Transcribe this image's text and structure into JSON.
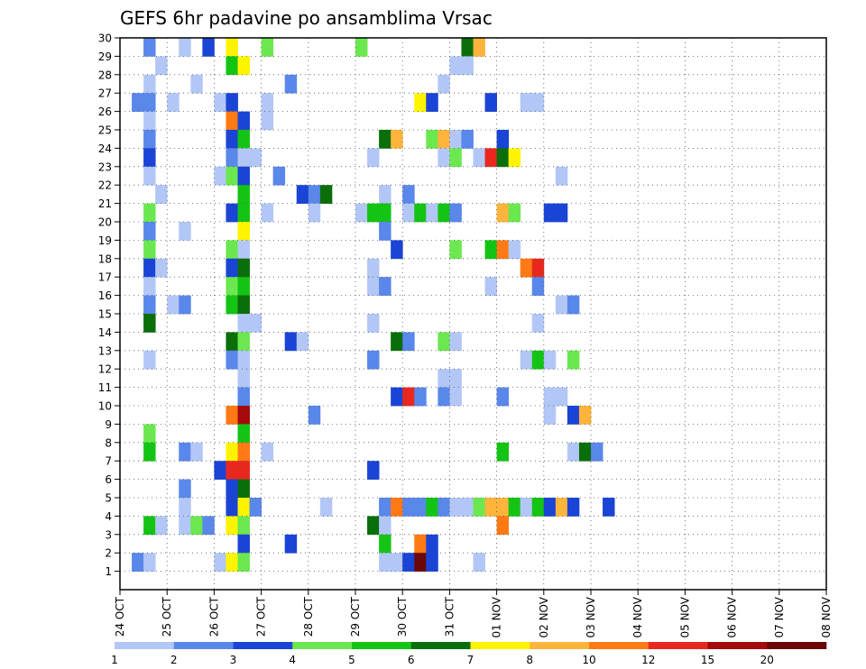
{
  "chart_data": {
    "type": "heatmap",
    "title": "GEFS 6hr padavine po ansamblima Vrsac",
    "x_ticks": [
      "24 OCT",
      "25 OCT",
      "26 OCT",
      "27 OCT",
      "28 OCT",
      "29 OCT",
      "30 OCT",
      "31 OCT",
      "01 NOV",
      "02 NOV",
      "03 NOV",
      "04 NOV",
      "05 NOV",
      "06 NOV",
      "07 NOV",
      "08 NOV"
    ],
    "y_ticks": [
      "1",
      "2",
      "3",
      "4",
      "5",
      "6",
      "7",
      "8",
      "9",
      "10",
      "11",
      "12",
      "13",
      "14",
      "15",
      "16",
      "17",
      "18",
      "19",
      "20",
      "21",
      "22",
      "23",
      "24",
      "25",
      "26",
      "27",
      "28",
      "29",
      "30"
    ],
    "x_steps_per_day": 4,
    "grid": true,
    "legend_placement": "bottom",
    "colorbar": {
      "labels": [
        "1",
        "2",
        "3",
        "4",
        "5",
        "6",
        "7",
        "8",
        "10",
        "12",
        "15",
        "20"
      ],
      "colors": [
        "#b3c7f7",
        "#5a87ea",
        "#1a44d6",
        "#6be84f",
        "#14c414",
        "#0a6e0a",
        "#fff400",
        "#ffb43c",
        "#ff7a14",
        "#e8281e",
        "#a40a0a",
        "#6a0808"
      ]
    },
    "cells": [
      [
        2,
        30,
        1
      ],
      [
        5,
        30,
        0
      ],
      [
        7,
        30,
        2
      ],
      [
        9,
        30,
        6
      ],
      [
        12,
        30,
        3
      ],
      [
        20,
        30,
        3
      ],
      [
        29,
        30,
        5
      ],
      [
        30,
        30,
        7
      ],
      [
        3,
        29,
        0
      ],
      [
        9,
        29,
        4
      ],
      [
        10,
        29,
        6
      ],
      [
        28,
        29,
        0
      ],
      [
        29,
        29,
        0
      ],
      [
        2,
        28,
        0
      ],
      [
        6,
        28,
        0
      ],
      [
        14,
        28,
        1
      ],
      [
        27,
        28,
        0
      ],
      [
        1,
        27,
        1
      ],
      [
        2,
        27,
        1
      ],
      [
        4,
        27,
        0
      ],
      [
        8,
        27,
        0
      ],
      [
        9,
        27,
        2
      ],
      [
        12,
        27,
        0
      ],
      [
        25,
        27,
        6
      ],
      [
        26,
        27,
        2
      ],
      [
        31,
        27,
        2
      ],
      [
        34,
        27,
        0
      ],
      [
        35,
        27,
        0
      ],
      [
        2,
        26,
        0
      ],
      [
        9,
        26,
        8
      ],
      [
        10,
        26,
        2
      ],
      [
        12,
        26,
        0
      ],
      [
        2,
        25,
        1
      ],
      [
        9,
        25,
        2
      ],
      [
        10,
        25,
        4
      ],
      [
        22,
        25,
        5
      ],
      [
        23,
        25,
        7
      ],
      [
        26,
        25,
        3
      ],
      [
        27,
        25,
        7
      ],
      [
        28,
        25,
        0
      ],
      [
        29,
        25,
        1
      ],
      [
        32,
        25,
        2
      ],
      [
        2,
        24,
        2
      ],
      [
        9,
        24,
        1
      ],
      [
        10,
        24,
        0
      ],
      [
        11,
        24,
        0
      ],
      [
        21,
        24,
        0
      ],
      [
        27,
        24,
        0
      ],
      [
        28,
        24,
        3
      ],
      [
        30,
        24,
        0
      ],
      [
        31,
        24,
        9
      ],
      [
        32,
        24,
        5
      ],
      [
        33,
        24,
        6
      ],
      [
        2,
        23,
        0
      ],
      [
        8,
        23,
        0
      ],
      [
        9,
        23,
        3
      ],
      [
        10,
        23,
        2
      ],
      [
        13,
        23,
        1
      ],
      [
        37,
        23,
        0
      ],
      [
        3,
        22,
        0
      ],
      [
        10,
        22,
        4
      ],
      [
        15,
        22,
        2
      ],
      [
        16,
        22,
        1
      ],
      [
        17,
        22,
        5
      ],
      [
        22,
        22,
        0
      ],
      [
        24,
        22,
        1
      ],
      [
        2,
        21,
        3
      ],
      [
        9,
        21,
        2
      ],
      [
        10,
        21,
        4
      ],
      [
        12,
        21,
        0
      ],
      [
        16,
        21,
        0
      ],
      [
        20,
        21,
        0
      ],
      [
        21,
        21,
        4
      ],
      [
        22,
        21,
        4
      ],
      [
        24,
        21,
        0
      ],
      [
        25,
        21,
        4
      ],
      [
        26,
        21,
        0
      ],
      [
        27,
        21,
        4
      ],
      [
        28,
        21,
        1
      ],
      [
        32,
        21,
        7
      ],
      [
        33,
        21,
        3
      ],
      [
        36,
        21,
        2
      ],
      [
        37,
        21,
        2
      ],
      [
        2,
        20,
        1
      ],
      [
        5,
        20,
        0
      ],
      [
        10,
        20,
        6
      ],
      [
        22,
        20,
        1
      ],
      [
        2,
        19,
        3
      ],
      [
        9,
        19,
        3
      ],
      [
        10,
        19,
        0
      ],
      [
        23,
        19,
        2
      ],
      [
        28,
        19,
        3
      ],
      [
        31,
        19,
        4
      ],
      [
        32,
        19,
        8
      ],
      [
        33,
        19,
        0
      ],
      [
        2,
        18,
        2
      ],
      [
        3,
        18,
        0
      ],
      [
        9,
        18,
        2
      ],
      [
        10,
        18,
        5
      ],
      [
        21,
        18,
        0
      ],
      [
        34,
        18,
        8
      ],
      [
        35,
        18,
        9
      ],
      [
        2,
        17,
        0
      ],
      [
        9,
        17,
        3
      ],
      [
        10,
        17,
        4
      ],
      [
        21,
        17,
        0
      ],
      [
        22,
        17,
        1
      ],
      [
        31,
        17,
        0
      ],
      [
        35,
        17,
        1
      ],
      [
        2,
        16,
        1
      ],
      [
        4,
        16,
        0
      ],
      [
        5,
        16,
        1
      ],
      [
        9,
        16,
        4
      ],
      [
        10,
        16,
        5
      ],
      [
        37,
        16,
        0
      ],
      [
        38,
        16,
        1
      ],
      [
        2,
        15,
        5
      ],
      [
        10,
        15,
        0
      ],
      [
        11,
        15,
        0
      ],
      [
        21,
        15,
        0
      ],
      [
        35,
        15,
        0
      ],
      [
        9,
        14,
        5
      ],
      [
        10,
        14,
        3
      ],
      [
        14,
        14,
        2
      ],
      [
        15,
        14,
        0
      ],
      [
        23,
        14,
        5
      ],
      [
        24,
        14,
        1
      ],
      [
        27,
        14,
        3
      ],
      [
        28,
        14,
        0
      ],
      [
        2,
        13,
        0
      ],
      [
        9,
        13,
        1
      ],
      [
        10,
        13,
        0
      ],
      [
        21,
        13,
        1
      ],
      [
        34,
        13,
        0
      ],
      [
        35,
        13,
        4
      ],
      [
        36,
        13,
        0
      ],
      [
        38,
        13,
        3
      ],
      [
        10,
        12,
        0
      ],
      [
        27,
        12,
        0
      ],
      [
        28,
        12,
        0
      ],
      [
        10,
        11,
        1
      ],
      [
        23,
        11,
        2
      ],
      [
        24,
        11,
        9
      ],
      [
        25,
        11,
        1
      ],
      [
        27,
        11,
        1
      ],
      [
        28,
        11,
        0
      ],
      [
        32,
        11,
        1
      ],
      [
        36,
        11,
        0
      ],
      [
        37,
        11,
        0
      ],
      [
        9,
        10,
        8
      ],
      [
        10,
        10,
        10
      ],
      [
        16,
        10,
        1
      ],
      [
        36,
        10,
        0
      ],
      [
        38,
        10,
        2
      ],
      [
        39,
        10,
        7
      ],
      [
        2,
        9,
        3
      ],
      [
        10,
        9,
        4
      ],
      [
        2,
        8,
        4
      ],
      [
        5,
        8,
        1
      ],
      [
        6,
        8,
        0
      ],
      [
        9,
        8,
        6
      ],
      [
        10,
        8,
        8
      ],
      [
        12,
        8,
        0
      ],
      [
        32,
        8,
        4
      ],
      [
        38,
        8,
        0
      ],
      [
        39,
        8,
        5
      ],
      [
        40,
        8,
        1
      ],
      [
        8,
        7,
        2
      ],
      [
        9,
        7,
        9
      ],
      [
        10,
        7,
        9
      ],
      [
        21,
        7,
        2
      ],
      [
        5,
        6,
        1
      ],
      [
        9,
        6,
        2
      ],
      [
        10,
        6,
        5
      ],
      [
        5,
        5,
        0
      ],
      [
        9,
        5,
        2
      ],
      [
        10,
        5,
        6
      ],
      [
        11,
        5,
        1
      ],
      [
        17,
        5,
        0
      ],
      [
        22,
        5,
        1
      ],
      [
        23,
        5,
        8
      ],
      [
        24,
        5,
        1
      ],
      [
        25,
        5,
        1
      ],
      [
        26,
        5,
        4
      ],
      [
        27,
        5,
        1
      ],
      [
        28,
        5,
        0
      ],
      [
        29,
        5,
        0
      ],
      [
        30,
        5,
        3
      ],
      [
        31,
        5,
        7
      ],
      [
        32,
        5,
        7
      ],
      [
        33,
        5,
        4
      ],
      [
        34,
        5,
        0
      ],
      [
        35,
        5,
        4
      ],
      [
        36,
        5,
        2
      ],
      [
        37,
        5,
        7
      ],
      [
        38,
        5,
        2
      ],
      [
        41,
        5,
        2
      ],
      [
        2,
        4,
        4
      ],
      [
        3,
        4,
        0
      ],
      [
        5,
        4,
        0
      ],
      [
        6,
        4,
        3
      ],
      [
        7,
        4,
        1
      ],
      [
        9,
        4,
        6
      ],
      [
        10,
        4,
        3
      ],
      [
        21,
        4,
        5
      ],
      [
        22,
        4,
        0
      ],
      [
        32,
        4,
        8
      ],
      [
        10,
        3,
        2
      ],
      [
        14,
        3,
        2
      ],
      [
        22,
        3,
        4
      ],
      [
        25,
        3,
        8
      ],
      [
        26,
        3,
        2
      ],
      [
        1,
        2,
        1
      ],
      [
        2,
        2,
        0
      ],
      [
        8,
        2,
        0
      ],
      [
        9,
        2,
        6
      ],
      [
        10,
        2,
        3
      ],
      [
        22,
        2,
        0
      ],
      [
        23,
        2,
        0
      ],
      [
        24,
        2,
        2
      ],
      [
        25,
        2,
        11
      ],
      [
        26,
        2,
        2
      ],
      [
        30,
        2,
        0
      ]
    ]
  }
}
